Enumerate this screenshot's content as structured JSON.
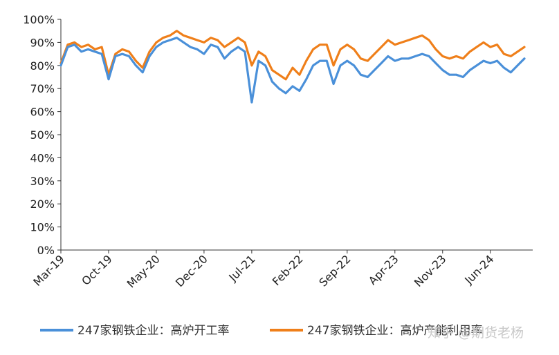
{
  "chart_data": {
    "type": "line",
    "title": "",
    "xlabel": "",
    "ylabel": "",
    "ylim": [
      0,
      100
    ],
    "y_ticks": [
      "0%",
      "10%",
      "20%",
      "30%",
      "40%",
      "50%",
      "60%",
      "70%",
      "80%",
      "90%",
      "100%"
    ],
    "x_ticks": [
      "Mar-19",
      "Oct-19",
      "May-20",
      "Dec-20",
      "Jul-21",
      "Feb-22",
      "Sep-22",
      "Apr-23",
      "Nov-23",
      "Jun-24"
    ],
    "x_range": [
      "2019-03",
      "2024-11"
    ],
    "grid": false,
    "legend_position": "bottom",
    "series": [
      {
        "name": "247家钢铁企业：高炉开工率",
        "color": "#4a90d9",
        "points": [
          [
            "2019-03",
            80
          ],
          [
            "2019-04",
            88
          ],
          [
            "2019-05",
            89
          ],
          [
            "2019-06",
            86
          ],
          [
            "2019-07",
            87
          ],
          [
            "2019-08",
            86
          ],
          [
            "2019-09",
            85
          ],
          [
            "2019-10",
            74
          ],
          [
            "2019-11",
            84
          ],
          [
            "2019-12",
            85
          ],
          [
            "2020-01",
            84
          ],
          [
            "2020-02",
            80
          ],
          [
            "2020-03",
            77
          ],
          [
            "2020-04",
            84
          ],
          [
            "2020-05",
            88
          ],
          [
            "2020-06",
            90
          ],
          [
            "2020-07",
            91
          ],
          [
            "2020-08",
            92
          ],
          [
            "2020-09",
            90
          ],
          [
            "2020-10",
            88
          ],
          [
            "2020-11",
            87
          ],
          [
            "2020-12",
            85
          ],
          [
            "2021-01",
            89
          ],
          [
            "2021-02",
            88
          ],
          [
            "2021-03",
            83
          ],
          [
            "2021-04",
            86
          ],
          [
            "2021-05",
            88
          ],
          [
            "2021-06",
            86
          ],
          [
            "2021-07",
            64
          ],
          [
            "2021-08",
            82
          ],
          [
            "2021-09",
            80
          ],
          [
            "2021-10",
            73
          ],
          [
            "2021-11",
            70
          ],
          [
            "2021-12",
            68
          ],
          [
            "2022-01",
            71
          ],
          [
            "2022-02",
            69
          ],
          [
            "2022-03",
            74
          ],
          [
            "2022-04",
            80
          ],
          [
            "2022-05",
            82
          ],
          [
            "2022-06",
            82
          ],
          [
            "2022-07",
            72
          ],
          [
            "2022-08",
            80
          ],
          [
            "2022-09",
            82
          ],
          [
            "2022-10",
            80
          ],
          [
            "2022-11",
            76
          ],
          [
            "2022-12",
            75
          ],
          [
            "2023-01",
            78
          ],
          [
            "2023-02",
            81
          ],
          [
            "2023-03",
            84
          ],
          [
            "2023-04",
            82
          ],
          [
            "2023-05",
            83
          ],
          [
            "2023-06",
            83
          ],
          [
            "2023-07",
            84
          ],
          [
            "2023-08",
            85
          ],
          [
            "2023-09",
            84
          ],
          [
            "2023-10",
            81
          ],
          [
            "2023-11",
            78
          ],
          [
            "2023-12",
            76
          ],
          [
            "2024-01",
            76
          ],
          [
            "2024-02",
            75
          ],
          [
            "2024-03",
            78
          ],
          [
            "2024-04",
            80
          ],
          [
            "2024-05",
            82
          ],
          [
            "2024-06",
            81
          ],
          [
            "2024-07",
            82
          ],
          [
            "2024-08",
            79
          ],
          [
            "2024-09",
            77
          ],
          [
            "2024-10",
            80
          ],
          [
            "2024-11",
            83
          ]
        ]
      },
      {
        "name": "247家钢铁企业：高炉产能利用率",
        "color": "#ef7f1a",
        "points": [
          [
            "2019-03",
            81
          ],
          [
            "2019-04",
            89
          ],
          [
            "2019-05",
            90
          ],
          [
            "2019-06",
            88
          ],
          [
            "2019-07",
            89
          ],
          [
            "2019-08",
            87
          ],
          [
            "2019-09",
            88
          ],
          [
            "2019-10",
            76
          ],
          [
            "2019-11",
            85
          ],
          [
            "2019-12",
            87
          ],
          [
            "2020-01",
            86
          ],
          [
            "2020-02",
            82
          ],
          [
            "2020-03",
            79
          ],
          [
            "2020-04",
            86
          ],
          [
            "2020-05",
            90
          ],
          [
            "2020-06",
            92
          ],
          [
            "2020-07",
            93
          ],
          [
            "2020-08",
            95
          ],
          [
            "2020-09",
            93
          ],
          [
            "2020-10",
            92
          ],
          [
            "2020-11",
            91
          ],
          [
            "2020-12",
            90
          ],
          [
            "2021-01",
            92
          ],
          [
            "2021-02",
            91
          ],
          [
            "2021-03",
            88
          ],
          [
            "2021-04",
            90
          ],
          [
            "2021-05",
            92
          ],
          [
            "2021-06",
            90
          ],
          [
            "2021-07",
            80
          ],
          [
            "2021-08",
            86
          ],
          [
            "2021-09",
            84
          ],
          [
            "2021-10",
            78
          ],
          [
            "2021-11",
            76
          ],
          [
            "2021-12",
            74
          ],
          [
            "2022-01",
            79
          ],
          [
            "2022-02",
            76
          ],
          [
            "2022-03",
            82
          ],
          [
            "2022-04",
            87
          ],
          [
            "2022-05",
            89
          ],
          [
            "2022-06",
            89
          ],
          [
            "2022-07",
            80
          ],
          [
            "2022-08",
            87
          ],
          [
            "2022-09",
            89
          ],
          [
            "2022-10",
            87
          ],
          [
            "2022-11",
            83
          ],
          [
            "2022-12",
            82
          ],
          [
            "2023-01",
            85
          ],
          [
            "2023-02",
            88
          ],
          [
            "2023-03",
            91
          ],
          [
            "2023-04",
            89
          ],
          [
            "2023-05",
            90
          ],
          [
            "2023-06",
            91
          ],
          [
            "2023-07",
            92
          ],
          [
            "2023-08",
            93
          ],
          [
            "2023-09",
            91
          ],
          [
            "2023-10",
            87
          ],
          [
            "2023-11",
            84
          ],
          [
            "2023-12",
            83
          ],
          [
            "2024-01",
            84
          ],
          [
            "2024-02",
            83
          ],
          [
            "2024-03",
            86
          ],
          [
            "2024-04",
            88
          ],
          [
            "2024-05",
            90
          ],
          [
            "2024-06",
            88
          ],
          [
            "2024-07",
            89
          ],
          [
            "2024-08",
            85
          ],
          [
            "2024-09",
            84
          ],
          [
            "2024-10",
            86
          ],
          [
            "2024-11",
            88
          ]
        ]
      }
    ]
  },
  "watermark": "知乎 @期货老杨"
}
